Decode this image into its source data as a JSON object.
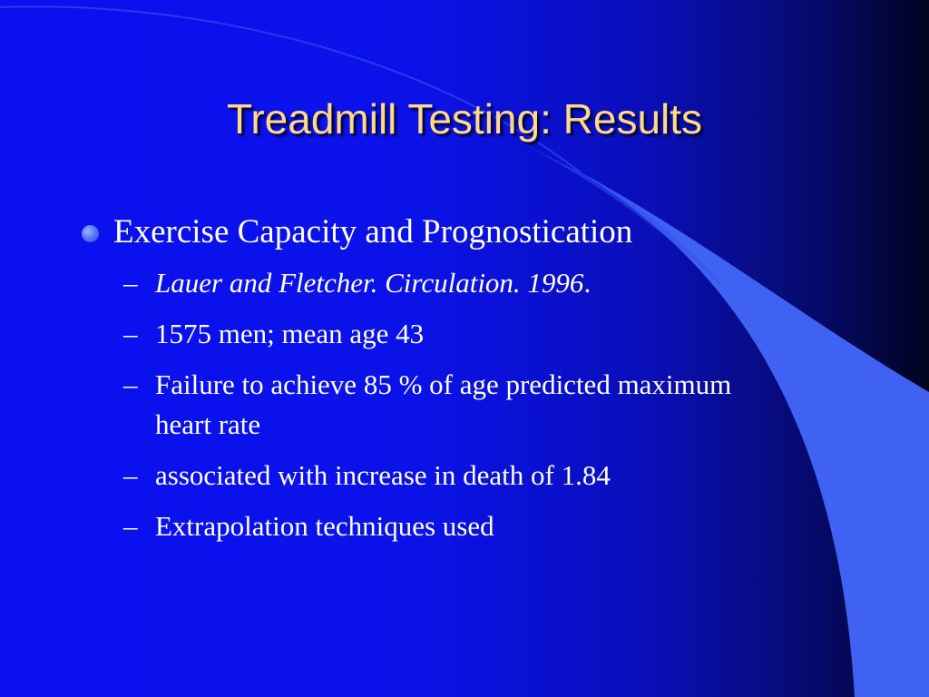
{
  "slide": {
    "title": "Treadmill Testing: Results",
    "bullet": "Exercise Capacity and Prognostication",
    "sub_marker": "–",
    "sub_items": [
      {
        "text": "Lauer and Fletcher. Circulation. 1996",
        "suffix": "."
      },
      {
        "text": "1575 men; mean age 43"
      },
      {
        "text": "Failure to achieve 85 % of age predicted maximum heart rate"
      },
      {
        "text": "associated with increase in death of 1.84"
      },
      {
        "text": "Extrapolation techniques used"
      }
    ]
  },
  "colors": {
    "title": "#ffd88a",
    "text": "#ffffff",
    "background_light": "#0a10f0",
    "background_dark": "#02031e",
    "swoosh": "#3f62f2"
  }
}
